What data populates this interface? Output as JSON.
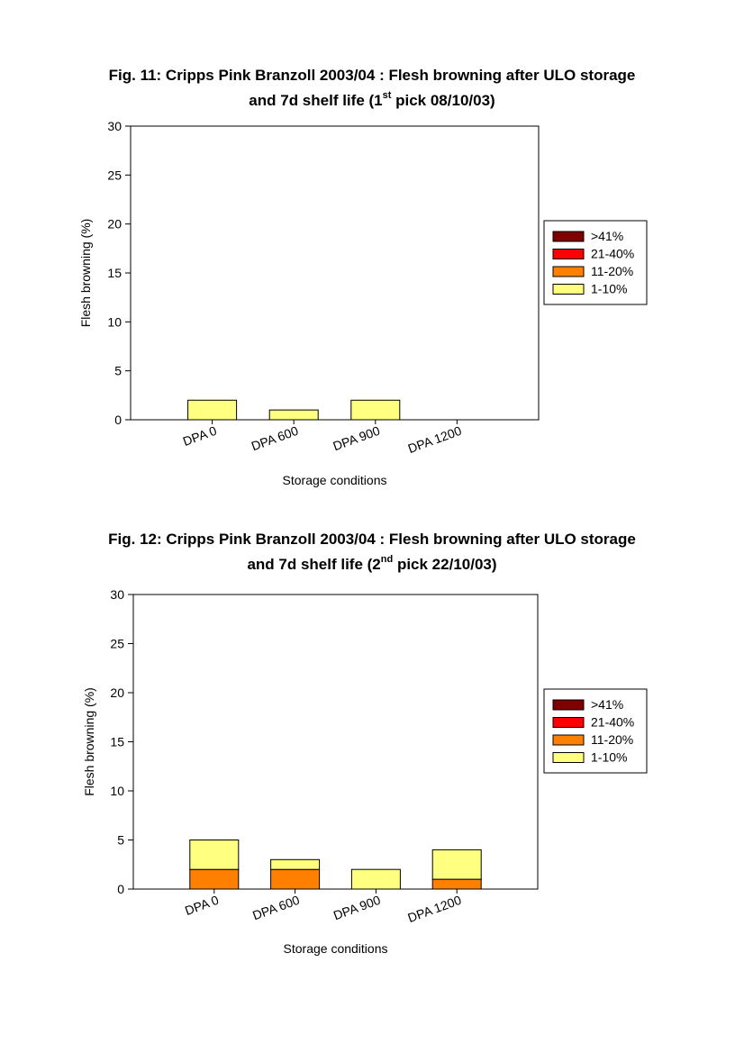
{
  "figures": [
    {
      "title_line1": "Fig. 11: Cripps Pink Branzoll 2003/04 : Flesh browning after ULO storage",
      "title_line2_pre": "and 7d shelf life (1",
      "title_line2_sup": "st",
      "title_line2_post": " pick 08/10/03)"
    },
    {
      "title_line1": "Fig. 12: Cripps Pink Branzoll 2003/04 : Flesh browning after ULO storage",
      "title_line2_pre": "and 7d shelf life (2",
      "title_line2_sup": "nd",
      "title_line2_post": " pick 22/10/03)"
    }
  ],
  "chart_data": [
    {
      "type": "bar",
      "stacked": true,
      "title": "Fig. 11: Cripps Pink Branzoll 2003/04 : Flesh browning after ULO storage and 7d shelf life (1st pick 08/10/03)",
      "xlabel": "Storage conditions",
      "ylabel": "Flesh browning (%)",
      "ylim": [
        0,
        30
      ],
      "yticks": [
        0,
        5,
        10,
        15,
        20,
        25,
        30
      ],
      "categories": [
        "DPA 0",
        "DPA 600",
        "DPA 900",
        "DPA 1200"
      ],
      "legend_position": "right",
      "series": [
        {
          "name": "1-10%",
          "color": "#ffff80",
          "values": [
            2,
            1,
            2,
            0
          ]
        },
        {
          "name": "11-20%",
          "color": "#ff8000",
          "values": [
            0,
            0,
            0,
            0
          ]
        },
        {
          "name": "21-40%",
          "color": "#ff0000",
          "values": [
            0,
            0,
            0,
            0
          ]
        },
        {
          "name": ">41%",
          "color": "#800000",
          "values": [
            0,
            0,
            0,
            0
          ]
        }
      ]
    },
    {
      "type": "bar",
      "stacked": true,
      "title": "Fig. 12: Cripps Pink Branzoll 2003/04 : Flesh browning after ULO storage and 7d shelf life (2nd pick 22/10/03)",
      "xlabel": "Storage conditions",
      "ylabel": "Flesh browning (%)",
      "ylim": [
        0,
        30
      ],
      "yticks": [
        0,
        5,
        10,
        15,
        20,
        25,
        30
      ],
      "categories": [
        "DPA 0",
        "DPA 600",
        "DPA 900",
        "DPA 1200"
      ],
      "legend_position": "right",
      "series": [
        {
          "name": "11-20%",
          "color": "#ff8000",
          "values": [
            2,
            2,
            0,
            1
          ]
        },
        {
          "name": "1-10%",
          "color": "#ffff80",
          "values": [
            3,
            1,
            2,
            3
          ]
        },
        {
          "name": "21-40%",
          "color": "#ff0000",
          "values": [
            0,
            0,
            0,
            0
          ]
        },
        {
          "name": ">41%",
          "color": "#800000",
          "values": [
            0,
            0,
            0,
            0
          ]
        }
      ]
    }
  ],
  "legend_order": [
    ">41%",
    "21-40%",
    "11-20%",
    "1-10%"
  ]
}
